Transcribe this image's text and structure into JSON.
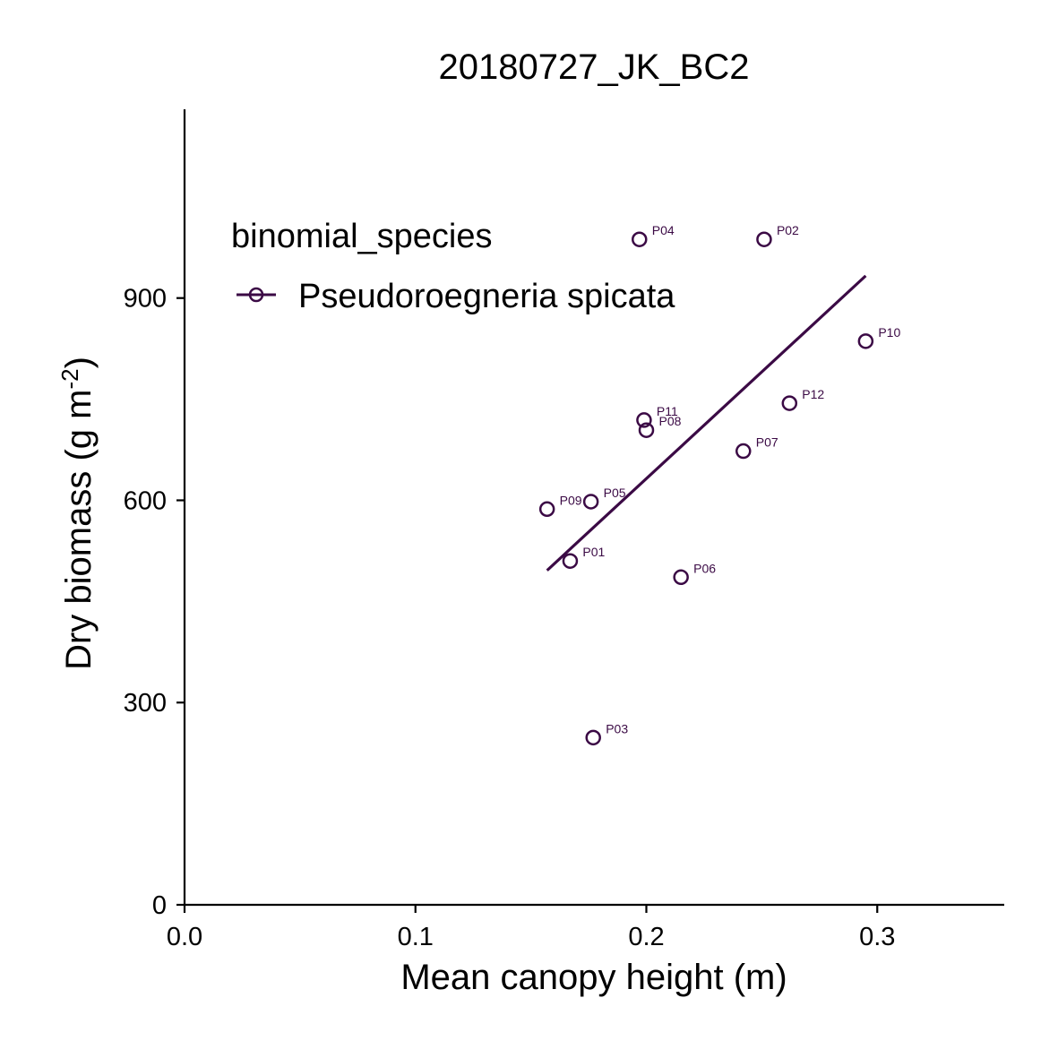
{
  "chart_data": {
    "type": "scatter",
    "title": "20180727_JK_BC2",
    "xlabel": "Mean canopy height (m)",
    "ylabel": {
      "base": "Dry biomass (g m",
      "superscript": "-2",
      "suffix": ")"
    },
    "xlim": [
      0,
      0.355
    ],
    "ylim": [
      0,
      1180
    ],
    "x_ticks": [
      {
        "value": 0.0,
        "label": "0.0"
      },
      {
        "value": 0.1,
        "label": "0.1"
      },
      {
        "value": 0.2,
        "label": "0.2"
      },
      {
        "value": 0.3,
        "label": "0.3"
      }
    ],
    "y_ticks": [
      {
        "value": 0,
        "label": "0"
      },
      {
        "value": 300,
        "label": "300"
      },
      {
        "value": 600,
        "label": "600"
      },
      {
        "value": 900,
        "label": "900"
      }
    ],
    "grid": false,
    "legend": {
      "title": "binomial_species",
      "placement": "top-left",
      "entries": [
        {
          "label": "Pseudoroegneria spicata"
        }
      ]
    },
    "series": [
      {
        "name": "Pseudoroegneria spicata",
        "color": "#3b0a45",
        "points": [
          {
            "label": "P01",
            "x": 0.167,
            "y": 510
          },
          {
            "label": "P02",
            "x": 0.251,
            "y": 987
          },
          {
            "label": "P03",
            "x": 0.177,
            "y": 248
          },
          {
            "label": "P04",
            "x": 0.197,
            "y": 987
          },
          {
            "label": "P05",
            "x": 0.176,
            "y": 598
          },
          {
            "label": "P06",
            "x": 0.215,
            "y": 486
          },
          {
            "label": "P07",
            "x": 0.242,
            "y": 673
          },
          {
            "label": "P08",
            "x": 0.2,
            "y": 704
          },
          {
            "label": "P09",
            "x": 0.157,
            "y": 587
          },
          {
            "label": "P10",
            "x": 0.295,
            "y": 836
          },
          {
            "label": "P11",
            "x": 0.199,
            "y": 719
          },
          {
            "label": "P12",
            "x": 0.262,
            "y": 744
          }
        ],
        "fit_line": {
          "x": [
            0.157,
            0.295
          ],
          "y": [
            496,
            933
          ]
        }
      }
    ]
  }
}
